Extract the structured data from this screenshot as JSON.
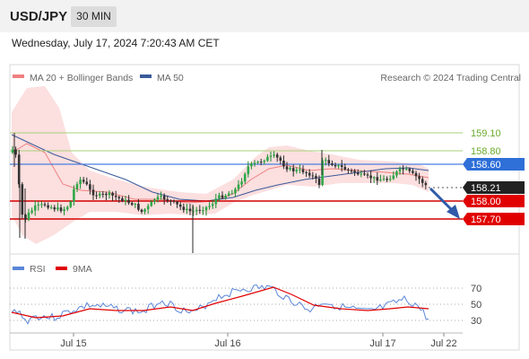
{
  "header": {
    "pair": "USD/JPY",
    "timeframe": "30 MIN",
    "datetime": "Wednesday, July 17, 2024 7:20:43 AM CET"
  },
  "chart_data": [
    {
      "type": "candlestick",
      "legend": [
        {
          "label": "MA 20 + Bollinger Bands",
          "color": "#f08080"
        },
        {
          "label": "MA 50",
          "color": "#3a5a9a"
        }
      ],
      "legend_placement": "top-left",
      "source": "Research © 2024 Trading Central",
      "x_ticks": [
        "Jul 15",
        "Jul 16",
        "Jul 17",
        "Jul 22"
      ],
      "y_range": [
        157.3,
        159.4
      ],
      "levels": [
        {
          "value": "159.10",
          "role": "resistance",
          "color": "#6aaa2a"
        },
        {
          "value": "158.80",
          "role": "resistance",
          "color": "#6aaa2a"
        },
        {
          "value": "158.60",
          "role": "pivot",
          "color": "#3b6fd8"
        },
        {
          "value": "158.21",
          "role": "last",
          "color": "#222222"
        },
        {
          "value": "158.00",
          "role": "support",
          "color": "#e00000"
        },
        {
          "value": "157.70",
          "role": "support",
          "color": "#e00000"
        }
      ],
      "grid": false
    },
    {
      "type": "line",
      "legend": [
        {
          "label": "RSI",
          "color": "#5a86d8"
        },
        {
          "label": "9MA",
          "color": "#e00000"
        }
      ],
      "y_ticks": [
        "70",
        "50",
        "30"
      ],
      "y_range": [
        20,
        80
      ]
    }
  ]
}
